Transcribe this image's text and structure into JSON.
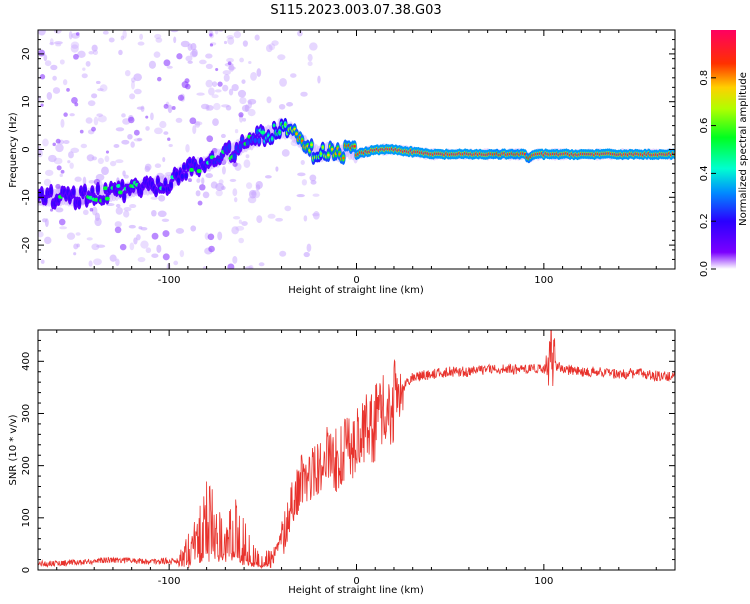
{
  "title": "S115.2023.003.07.38.G03",
  "chart_data": [
    {
      "type": "heatmap",
      "xlabel": "Height of straight line (km)",
      "ylabel": "Frequency (Hz)",
      "xlim": [
        -170,
        170
      ],
      "ylim": [
        -25,
        25
      ],
      "xticks": [
        -100,
        0,
        100
      ],
      "xtick_labels": [
        "-100",
        "0",
        "100"
      ],
      "yticks": [
        -20,
        -10,
        0,
        10,
        20
      ],
      "ytick_labels": [
        "-20",
        "-10",
        "0",
        "10",
        "20"
      ],
      "ridge": {
        "x": [
          -168,
          -150,
          -130,
          -115,
          -100,
          -90,
          -80,
          -70,
          -60,
          -50,
          -40,
          -35,
          -30,
          -25,
          -20,
          -15,
          -10,
          -5,
          0,
          10,
          20,
          40,
          60,
          70,
          75,
          80,
          85,
          90,
          92,
          95,
          110,
          130,
          150,
          168
        ],
        "y": [
          -10,
          -10,
          -9,
          -8,
          -7,
          -4,
          -3,
          -1,
          1,
          3,
          4,
          4,
          2,
          0,
          -1,
          0,
          -1,
          0,
          -1,
          0,
          0,
          -1,
          -1,
          -1,
          -1,
          -1,
          -1,
          -1,
          -2,
          -1,
          -1,
          -1,
          -1,
          -1
        ],
        "amplitude": [
          0.25,
          0.25,
          0.25,
          0.25,
          0.28,
          0.3,
          0.3,
          0.35,
          0.35,
          0.4,
          0.55,
          0.7,
          0.85,
          0.75,
          0.6,
          0.75,
          0.8,
          0.85,
          0.9,
          0.95,
          0.95,
          0.95,
          0.95,
          0.95,
          0.9,
          0.95,
          0.9,
          0.95,
          0.85,
          0.95,
          0.95,
          0.95,
          0.95,
          0.95
        ]
      },
      "colorbar": {
        "label": "Normalized spectral amplitude",
        "range": [
          0,
          1
        ],
        "ticks": [
          0.0,
          0.2,
          0.4,
          0.6,
          0.8
        ],
        "tick_labels": [
          "0.0",
          "0.2",
          "0.4",
          "0.6",
          "0.8"
        ]
      }
    },
    {
      "type": "line",
      "xlabel": "Height of straight line (km)",
      "ylabel": "SNR (10 * v/v)",
      "xlim": [
        -170,
        170
      ],
      "ylim": [
        0,
        460
      ],
      "xticks": [
        -100,
        0,
        100
      ],
      "xtick_labels": [
        "-100",
        "0",
        "100"
      ],
      "yticks": [
        0,
        100,
        200,
        300,
        400
      ],
      "ytick_labels": [
        "0",
        "100",
        "200",
        "300",
        "400"
      ],
      "color": "#e8322c",
      "series": [
        {
          "x": [
            -170,
            -150,
            -130,
            -110,
            -95,
            -90,
            -85,
            -80,
            -75,
            -70,
            -65,
            -60,
            -55,
            -50,
            -45,
            -40,
            -35,
            -30,
            -25,
            -20,
            -15,
            -10,
            -5,
            0,
            5,
            10,
            15,
            20,
            25,
            30,
            40,
            50,
            60,
            70,
            80,
            90,
            100,
            103,
            105,
            110,
            120,
            130,
            140,
            150,
            160,
            170
          ],
          "y": [
            12,
            14,
            20,
            16,
            18,
            40,
            60,
            90,
            80,
            70,
            75,
            50,
            30,
            20,
            22,
            60,
            120,
            170,
            180,
            200,
            220,
            210,
            230,
            250,
            270,
            280,
            300,
            320,
            350,
            370,
            375,
            380,
            380,
            385,
            385,
            385,
            385,
            380,
            395,
            385,
            380,
            380,
            375,
            378,
            372,
            370
          ]
        }
      ]
    }
  ]
}
